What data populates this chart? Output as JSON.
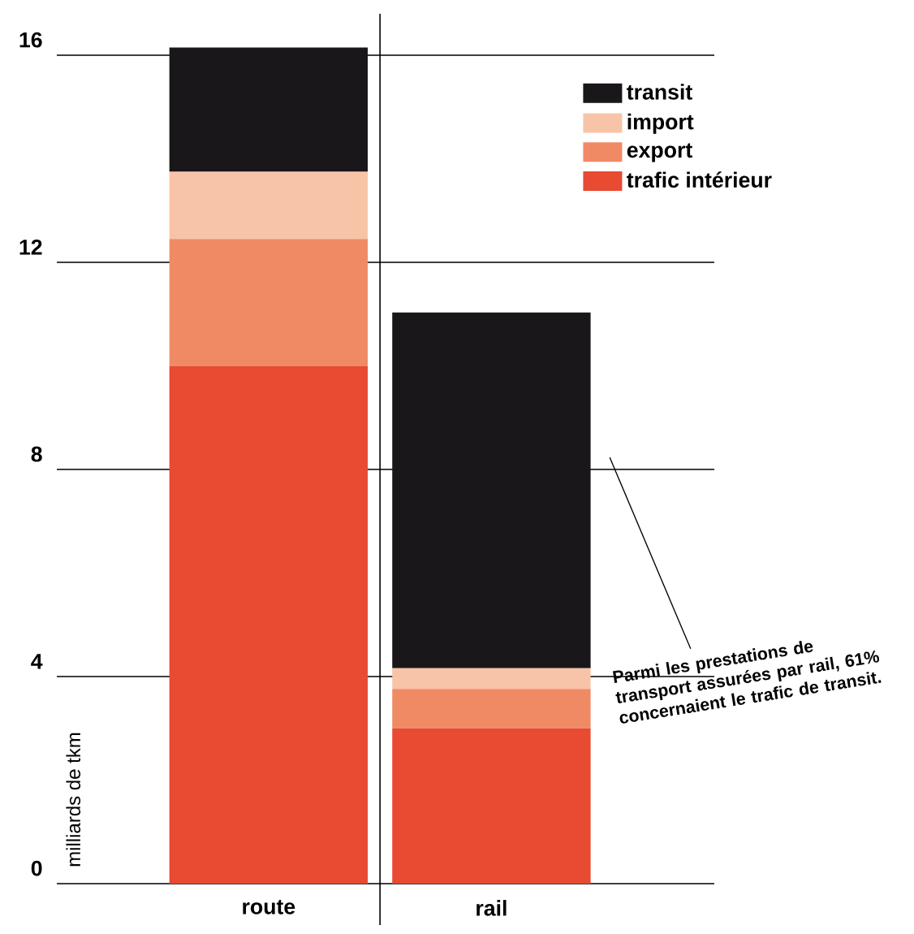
{
  "chart_data": {
    "type": "bar",
    "stacked": true,
    "categories": [
      "route",
      "rail"
    ],
    "series": [
      {
        "name": "trafic intérieur",
        "color": "#e84a32",
        "values": [
          10,
          3
        ]
      },
      {
        "name": "export",
        "color": "#f08a65",
        "values": [
          2.45,
          0.76
        ]
      },
      {
        "name": "import",
        "color": "#f8c4a8",
        "values": [
          1.3,
          0.4
        ]
      },
      {
        "name": "transit",
        "color": "#1a171b",
        "values": [
          2.4,
          6.87
        ]
      }
    ],
    "ylabel": "milliards de tkm",
    "ylim": [
      0,
      16.8
    ],
    "yticks": [
      0,
      4,
      8,
      12,
      16
    ],
    "grid": "y",
    "legend": "top right",
    "annotations": [
      "Parmi les prestations de transport assurées par rail, 61% concernaient le trafic de transit."
    ]
  }
}
